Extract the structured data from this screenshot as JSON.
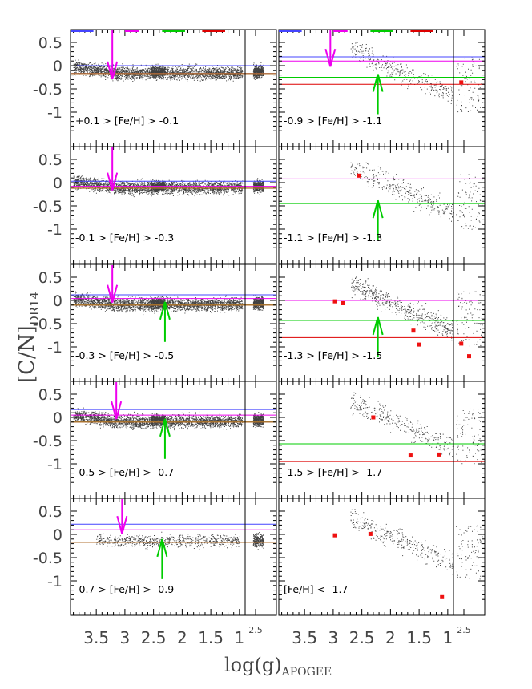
{
  "colors": {
    "blue": "#4444ff",
    "magenta": "#ee00ee",
    "green": "#00cc00",
    "red": "#dd0000",
    "brown": "#b07030",
    "points": "#000000",
    "squares": "#ee1111"
  },
  "chart_data": {
    "type": "scatter",
    "xlabel": "log(g)",
    "xlabel_sub": "APOGEE",
    "ylabel": "[C/N]",
    "ylabel_sub": "DR14",
    "x_ticks": [
      "3.5",
      "3",
      "2.5",
      "2",
      "1.5",
      "1"
    ],
    "x_ticks_values": [
      3.5,
      3.0,
      2.5,
      2.0,
      1.5,
      1.0
    ],
    "inset_x_tick": "2.5",
    "y_ticks": [
      "0.5",
      "0",
      "-0.5",
      "-1"
    ],
    "y_ticks_values": [
      0.5,
      0,
      -0.5,
      -1
    ],
    "xlim": [
      3.95,
      0.9
    ],
    "ylim": [
      -1.5,
      0.65
    ],
    "top_bars": [
      {
        "color": "blue",
        "range": [
          3.95,
          3.55
        ]
      },
      {
        "color": "magenta",
        "range": [
          3.0,
          2.75
        ]
      },
      {
        "color": "green",
        "range": [
          2.35,
          1.95
        ]
      },
      {
        "color": "red",
        "range": [
          1.65,
          1.25
        ]
      }
    ],
    "panels": [
      {
        "label": "+0.1 > [Fe/H] > -0.1",
        "col": 0,
        "row": 0,
        "lines": {
          "blue": 0.0,
          "magenta": -0.17,
          "green": -0.17,
          "red": -0.17,
          "brown": -0.17
        },
        "magenta_arrow": 3.22,
        "green_arrow": null,
        "squares": [],
        "density": "heavy"
      },
      {
        "label": "-0.9 > [Fe/H] > -1.1",
        "col": 1,
        "row": 0,
        "lines": {
          "blue": 0.19,
          "magenta": 0.1,
          "green": -0.25,
          "red": -0.4
        },
        "magenta_arrow": 3.05,
        "green_arrow": 2.22,
        "squares": [
          [
            0.05,
            -0.36
          ]
        ],
        "density": "light"
      },
      {
        "label": "-0.1 > [Fe/H] > -0.3",
        "col": 0,
        "row": 1,
        "lines": {
          "blue": 0.03,
          "magenta": -0.08,
          "green": -0.12,
          "red": -0.12,
          "brown": -0.12
        },
        "magenta_arrow": 3.22,
        "green_arrow": null,
        "squares": [],
        "density": "heavy"
      },
      {
        "label": "-1.1 > [Fe/H] > -1.3",
        "col": 1,
        "row": 1,
        "lines": {
          "magenta": 0.08,
          "green": -0.45,
          "red": -0.63
        },
        "magenta_arrow": null,
        "green_arrow": 2.22,
        "squares": [
          [
            2.55,
            0.15
          ]
        ],
        "density": "light"
      },
      {
        "label": "-0.3 > [Fe/H] > -0.5",
        "col": 0,
        "row": 2,
        "lines": {
          "blue": 0.12,
          "magenta": 0.04,
          "green": -0.1,
          "red": -0.1,
          "brown": -0.1
        },
        "magenta_arrow": 3.22,
        "green_arrow": 2.3,
        "squares": [],
        "density": "heavy"
      },
      {
        "label": "-1.3 > [Fe/H] > -1.5",
        "col": 1,
        "row": 2,
        "lines": {
          "magenta": 0.0,
          "green": -0.43,
          "red": -0.8
        },
        "magenta_arrow": null,
        "green_arrow": 2.22,
        "squares": [
          [
            2.97,
            -0.02
          ],
          [
            2.83,
            -0.06
          ],
          [
            1.6,
            -0.65
          ],
          [
            1.5,
            -0.95
          ],
          [
            0.05,
            -0.93
          ],
          [
            -0.1,
            -1.2
          ]
        ],
        "density": "medium"
      },
      {
        "label": "-0.5 > [Fe/H] > -0.7",
        "col": 0,
        "row": 3,
        "lines": {
          "blue": 0.17,
          "magenta": 0.05,
          "green": -0.1,
          "red": -0.1,
          "brown": -0.1
        },
        "magenta_arrow": 3.15,
        "green_arrow": 2.3,
        "squares": [],
        "density": "heavy"
      },
      {
        "label": "-1.5 > [Fe/H] > -1.7",
        "col": 1,
        "row": 3,
        "lines": {
          "green": -0.57,
          "red": -0.95
        },
        "magenta_arrow": null,
        "green_arrow": null,
        "squares": [
          [
            2.3,
            0.0
          ],
          [
            1.65,
            -0.82
          ],
          [
            1.15,
            -0.8
          ]
        ],
        "density": "light"
      },
      {
        "label": "-0.7 > [Fe/H] > -0.9",
        "col": 0,
        "row": 4,
        "lines": {
          "blue": 0.22,
          "magenta": 0.1,
          "green": -0.17,
          "red": -0.17,
          "brown": -0.17
        },
        "magenta_arrow": 3.05,
        "green_arrow": 2.35,
        "squares": [],
        "density": "medium"
      },
      {
        "label": "[Fe/H] < -1.7",
        "col": 1,
        "row": 4,
        "lines": {},
        "magenta_arrow": null,
        "green_arrow": null,
        "squares": [
          [
            2.97,
            -0.02
          ],
          [
            2.35,
            0.01
          ],
          [
            1.1,
            -1.35
          ]
        ],
        "density": "light"
      }
    ]
  }
}
